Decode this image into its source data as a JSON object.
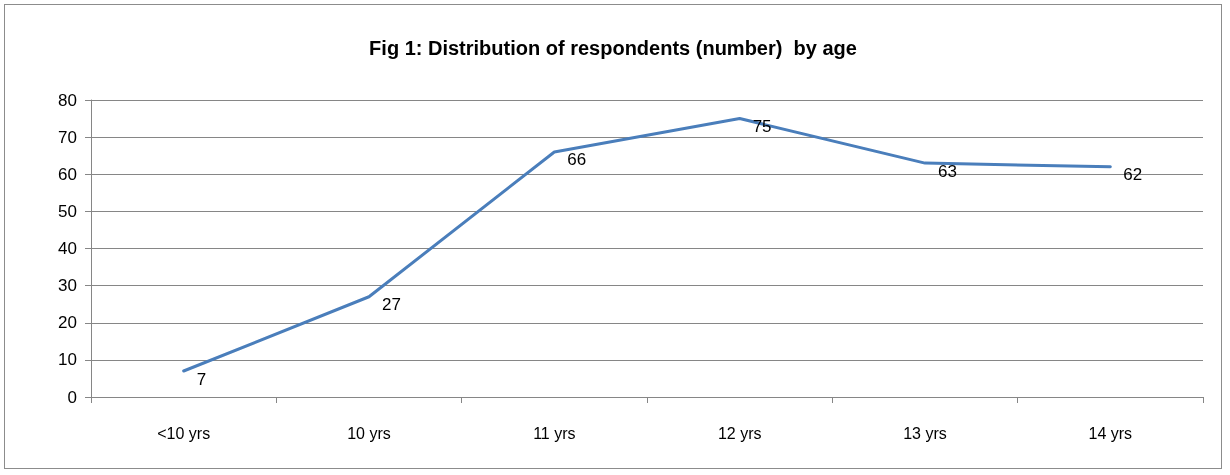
{
  "chart_data": {
    "type": "line",
    "title": "Fig 1: Distribution of respondents (number)  by age",
    "categories": [
      "<10 yrs",
      "10 yrs",
      "11 yrs",
      "12 yrs",
      "13 yrs",
      "14 yrs"
    ],
    "values": [
      7,
      27,
      66,
      75,
      63,
      62
    ],
    "color": "#4a7ebb",
    "ylim": [
      0,
      80
    ],
    "yticks": [
      0,
      10,
      20,
      30,
      40,
      50,
      60,
      70,
      80
    ],
    "grid": "y",
    "data_labels": true,
    "marker": "none",
    "line_style": "solid"
  }
}
